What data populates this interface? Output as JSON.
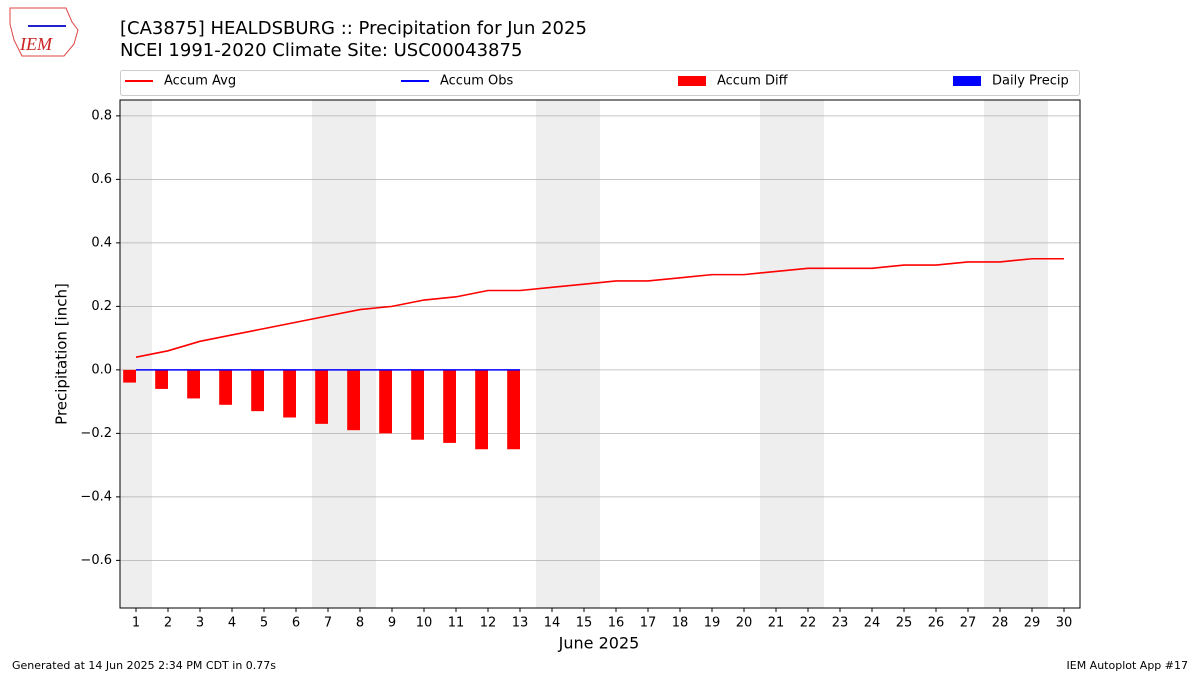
{
  "chart_data": {
    "type": "combo",
    "title": "[CA3875] HEALDSBURG :: Precipitation for Jun 2025",
    "subtitle": "NCEI 1991-2020 Climate Site: USC00043875",
    "logo_text": "IEM",
    "x_label": "June 2025",
    "y_label": "Precipitation [inch]",
    "footer_left": "Generated at 14 Jun 2025 2:34 PM CDT in 0.77s",
    "footer_right": "IEM Autoplot App #17",
    "x": [
      1,
      2,
      3,
      4,
      5,
      6,
      7,
      8,
      9,
      10,
      11,
      12,
      13,
      14,
      15,
      16,
      17,
      18,
      19,
      20,
      21,
      22,
      23,
      24,
      25,
      26,
      27,
      28,
      29,
      30
    ],
    "xlim": [
      0.5,
      30.5
    ],
    "xticks": [
      1,
      2,
      3,
      4,
      5,
      6,
      7,
      8,
      9,
      10,
      11,
      12,
      13,
      14,
      15,
      16,
      17,
      18,
      19,
      20,
      21,
      22,
      23,
      24,
      25,
      26,
      27,
      28,
      29,
      30
    ],
    "ylim": [
      -0.75,
      0.85
    ],
    "yticks": [
      {
        "value": -0.6,
        "label": "−0.6"
      },
      {
        "value": -0.4,
        "label": "−0.4"
      },
      {
        "value": -0.2,
        "label": "−0.2"
      },
      {
        "value": 0,
        "label": "0.0"
      },
      0.2,
      0.4,
      0.6,
      0.8
    ],
    "grid": true,
    "shaded_days": [
      1,
      7,
      8,
      14,
      15,
      21,
      22,
      28,
      29
    ],
    "shade_color": "#eeeeee",
    "series": [
      {
        "name": "Accum Avg",
        "kind": "line",
        "color": "#ff0000",
        "values": [
          0.04,
          0.06,
          0.09,
          0.11,
          0.13,
          0.15,
          0.17,
          0.19,
          0.2,
          0.22,
          0.23,
          0.25,
          0.25,
          0.26,
          0.27,
          0.28,
          0.28,
          0.29,
          0.3,
          0.3,
          0.31,
          0.32,
          0.32,
          0.32,
          0.33,
          0.33,
          0.34,
          0.34,
          0.35,
          0.35
        ]
      },
      {
        "name": "Accum Obs",
        "kind": "line",
        "color": "#0000ff",
        "values": [
          0,
          0,
          0,
          0,
          0,
          0,
          0,
          0,
          0,
          0,
          0,
          0,
          0,
          null,
          null,
          null,
          null,
          null,
          null,
          null,
          null,
          null,
          null,
          null,
          null,
          null,
          null,
          null,
          null,
          null
        ]
      },
      {
        "name": "Accum Diff",
        "kind": "bar",
        "color": "#ff0000",
        "values": [
          -0.04,
          -0.06,
          -0.09,
          -0.11,
          -0.13,
          -0.15,
          -0.17,
          -0.19,
          -0.2,
          -0.22,
          -0.23,
          -0.25,
          -0.25,
          null,
          null,
          null,
          null,
          null,
          null,
          null,
          null,
          null,
          null,
          null,
          null,
          null,
          null,
          null,
          null,
          null
        ]
      },
      {
        "name": "Daily Precip",
        "kind": "bar",
        "color": "#0000ff",
        "values": [
          0,
          0,
          0,
          0,
          0,
          0,
          0,
          0,
          0,
          0,
          0,
          0,
          0,
          null,
          null,
          null,
          null,
          null,
          null,
          null,
          null,
          null,
          null,
          null,
          null,
          null,
          null,
          null,
          null,
          null
        ]
      }
    ]
  }
}
